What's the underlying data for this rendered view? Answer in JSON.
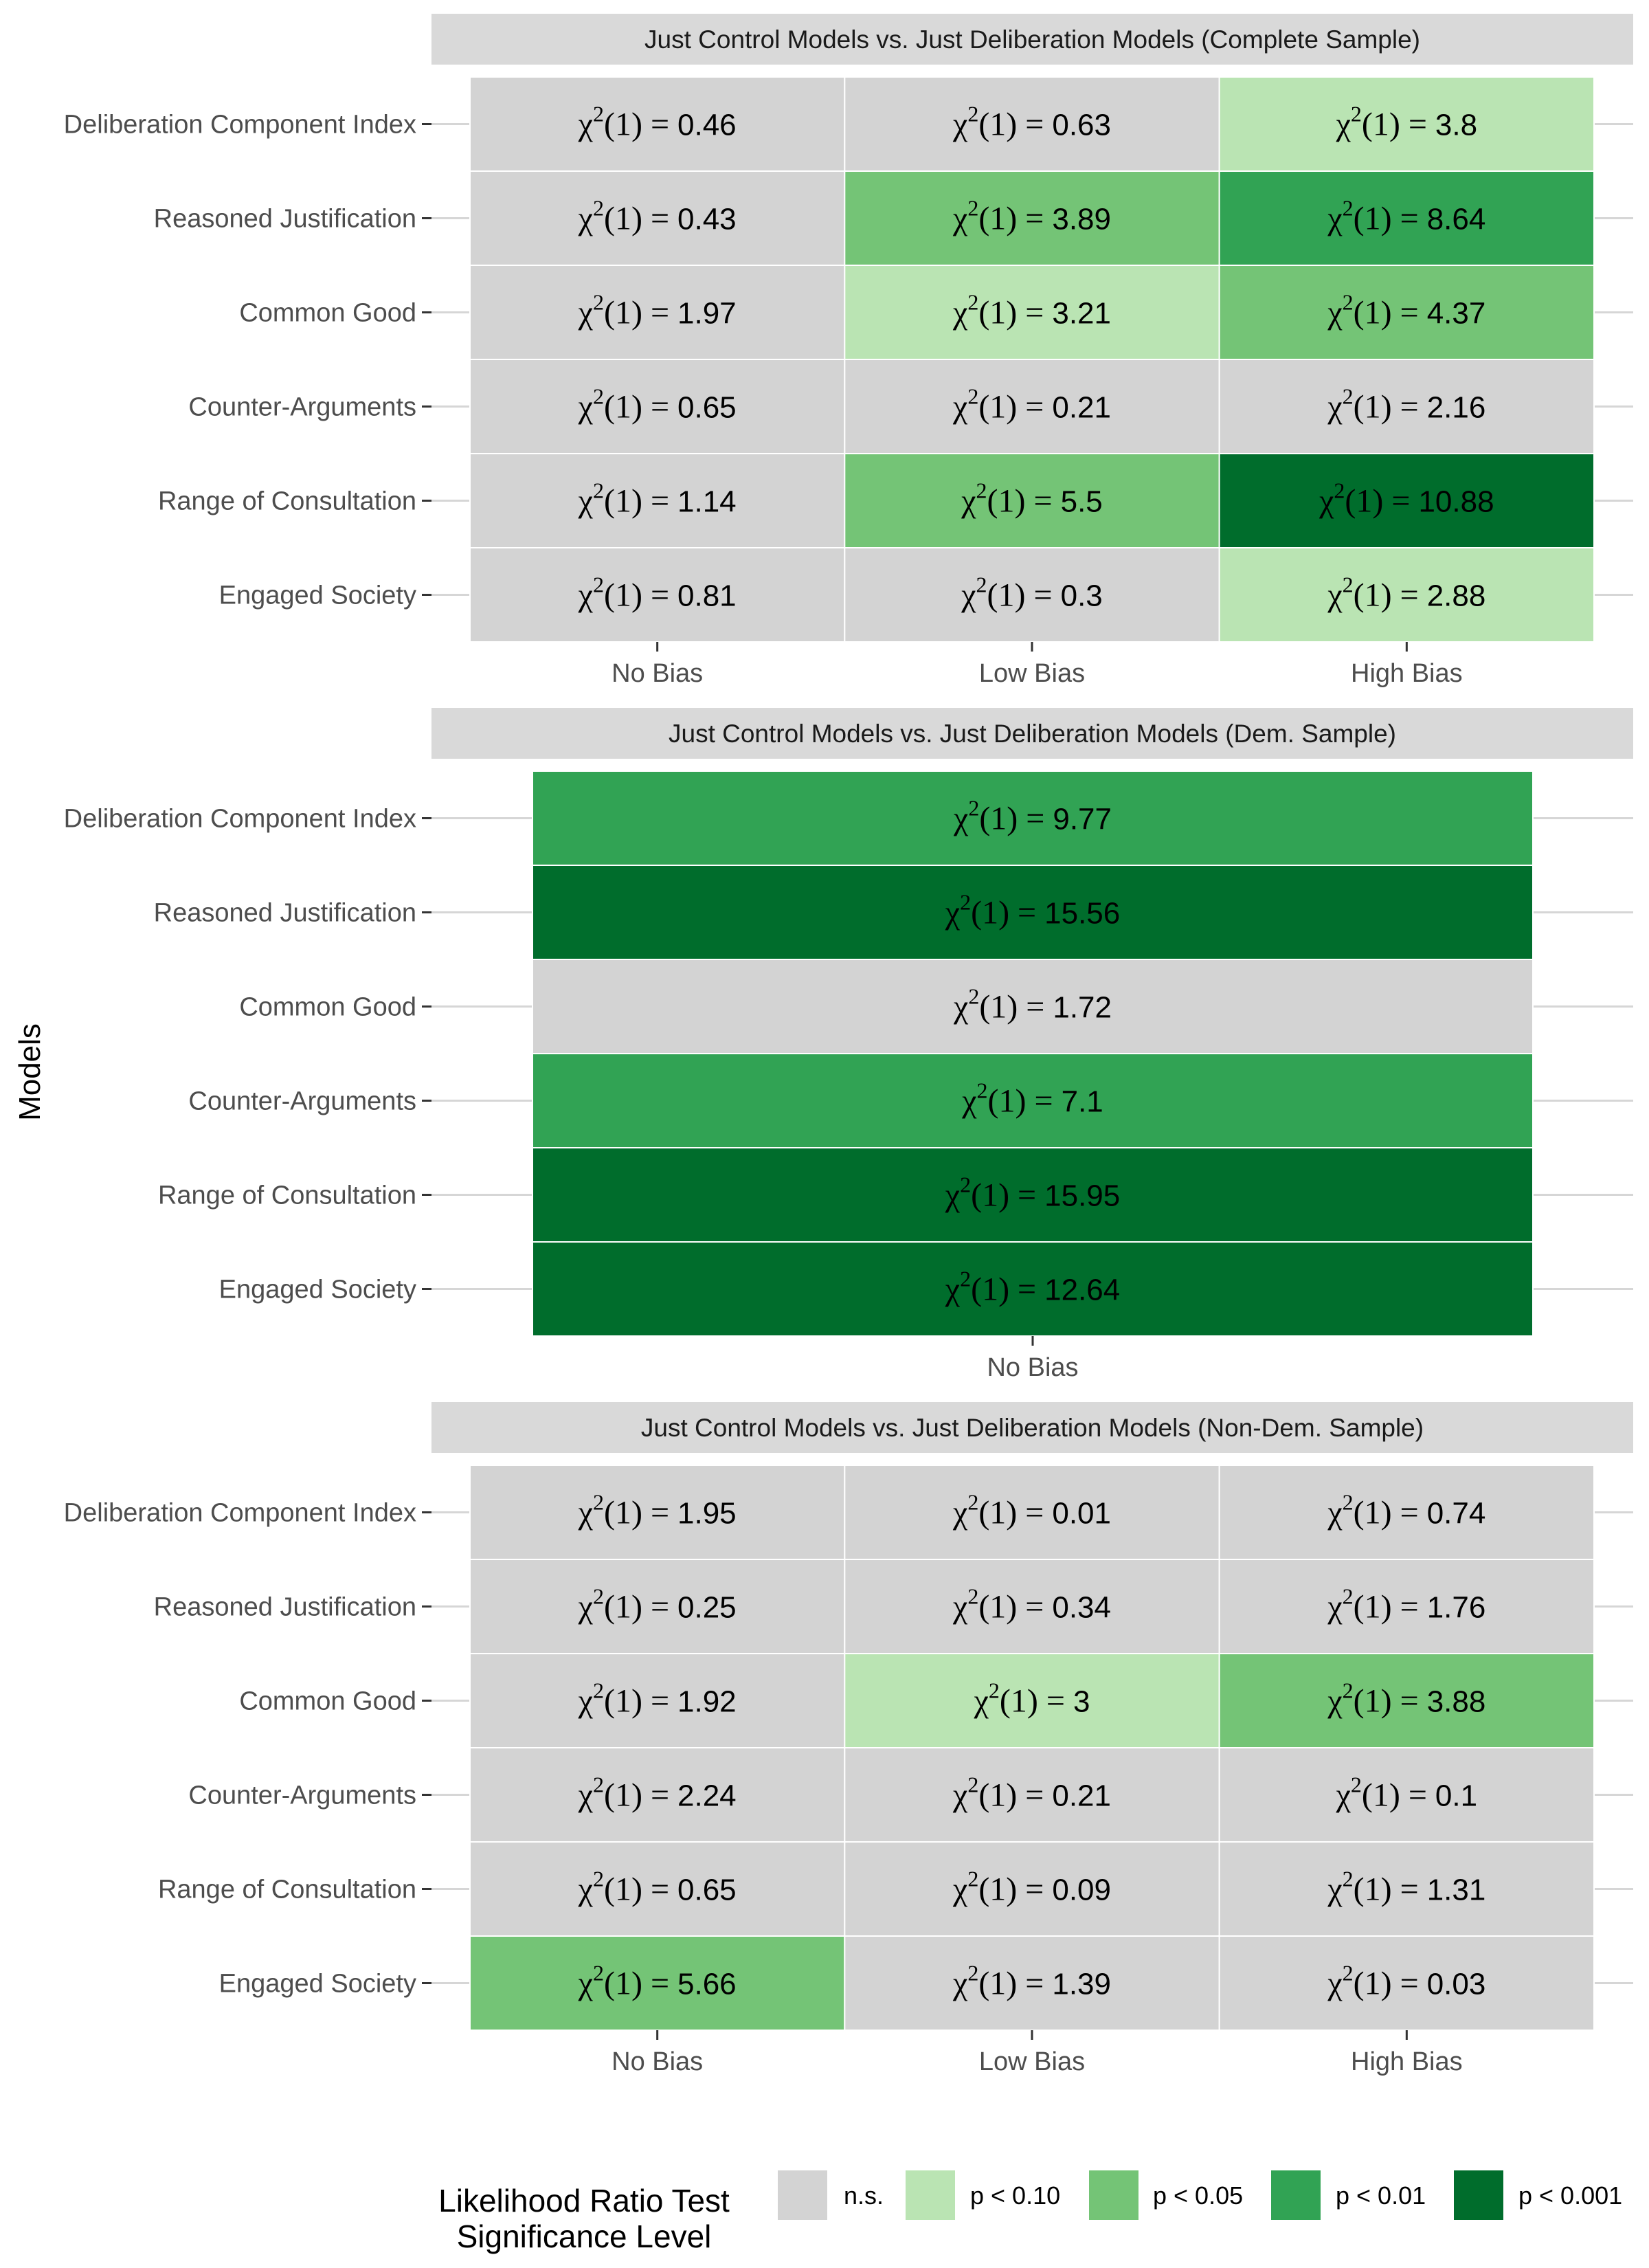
{
  "colors": {
    "ns": "#d3d3d3",
    "p10": "#bae4b3",
    "p05": "#74c476",
    "p01": "#31a354",
    "p001": "#006d2c",
    "strip": "#d9d9d9",
    "grid": "#d6d6d6"
  },
  "chart_data": {
    "type": "heatmap",
    "ylabel": "Models",
    "legend": {
      "title_lines": [
        "Likelihood Ratio Test",
        "Significance Level"
      ],
      "placement": "bottom",
      "levels": [
        {
          "key": "ns",
          "label": "n.s."
        },
        {
          "key": "p10",
          "label": "p < 0.10"
        },
        {
          "key": "p05",
          "label": "p < 0.05"
        },
        {
          "key": "p01",
          "label": "p < 0.01"
        },
        {
          "key": "p001",
          "label": "p < 0.001"
        }
      ]
    },
    "panels": [
      {
        "title": "Just Control Models vs. Just Deliberation Models (Complete Sample)",
        "columns": [
          "No Bias",
          "Low Bias",
          "High Bias"
        ],
        "rows": [
          "Deliberation Component Index",
          "Reasoned Justification",
          "Common Good",
          "Counter-Arguments",
          "Range of Consultation",
          "Engaged Society"
        ],
        "values": [
          [
            "0.46",
            "0.63",
            "3.8"
          ],
          [
            "0.43",
            "3.89",
            "8.64"
          ],
          [
            "1.97",
            "3.21",
            "4.37"
          ],
          [
            "0.65",
            "0.21",
            "2.16"
          ],
          [
            "1.14",
            "5.5",
            "10.88"
          ],
          [
            "0.81",
            "0.3",
            "2.88"
          ]
        ],
        "significance": [
          [
            "ns",
            "ns",
            "p10"
          ],
          [
            "ns",
            "p05",
            "p01"
          ],
          [
            "ns",
            "p10",
            "p05"
          ],
          [
            "ns",
            "ns",
            "ns"
          ],
          [
            "ns",
            "p05",
            "p001"
          ],
          [
            "ns",
            "ns",
            "p10"
          ]
        ]
      },
      {
        "title": "Just Control Models vs. Just Deliberation Models (Dem. Sample)",
        "columns": [
          "No Bias"
        ],
        "rows": [
          "Deliberation Component Index",
          "Reasoned Justification",
          "Common Good",
          "Counter-Arguments",
          "Range of Consultation",
          "Engaged Society"
        ],
        "values": [
          [
            "9.77"
          ],
          [
            "15.56"
          ],
          [
            "1.72"
          ],
          [
            "7.1"
          ],
          [
            "15.95"
          ],
          [
            "12.64"
          ]
        ],
        "significance": [
          [
            "p01"
          ],
          [
            "p001"
          ],
          [
            "ns"
          ],
          [
            "p01"
          ],
          [
            "p001"
          ],
          [
            "p001"
          ]
        ]
      },
      {
        "title": "Just Control Models vs. Just Deliberation Models (Non-Dem. Sample)",
        "columns": [
          "No Bias",
          "Low Bias",
          "High Bias"
        ],
        "rows": [
          "Deliberation Component Index",
          "Reasoned Justification",
          "Common Good",
          "Counter-Arguments",
          "Range of Consultation",
          "Engaged Society"
        ],
        "values": [
          [
            "1.95",
            "0.01",
            "0.74"
          ],
          [
            "0.25",
            "0.34",
            "1.76"
          ],
          [
            "1.92",
            "3",
            "3.88"
          ],
          [
            "2.24",
            "0.21",
            "0.1"
          ],
          [
            "0.65",
            "0.09",
            "1.31"
          ],
          [
            "5.66",
            "1.39",
            "0.03"
          ]
        ],
        "significance": [
          [
            "ns",
            "ns",
            "ns"
          ],
          [
            "ns",
            "ns",
            "ns"
          ],
          [
            "ns",
            "p10",
            "p05"
          ],
          [
            "ns",
            "ns",
            "ns"
          ],
          [
            "ns",
            "ns",
            "ns"
          ],
          [
            "p05",
            "ns",
            "ns"
          ]
        ]
      }
    ]
  }
}
